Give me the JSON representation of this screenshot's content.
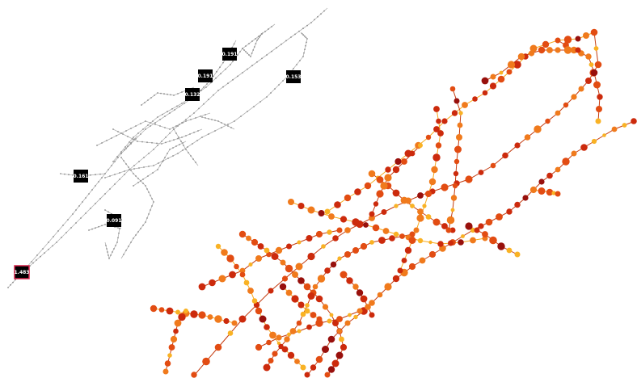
{
  "colors": {
    "background": "#ffffff",
    "overview_edge": "#b3b3b3",
    "overview_node": "#8c8c8c",
    "badge_fill": "#000000",
    "badge_text": "#ffffff",
    "highlight_border": "#d6224a",
    "main_edge_light": "#f7a81c",
    "main_edge_dark": "#c43b10",
    "node_yellow": "#f9b224",
    "node_orange": "#f07a1c",
    "node_red_orange": "#e24c12",
    "node_red": "#cc2a0c",
    "node_dark_red": "#98100c"
  },
  "overview": {
    "name": "network-overview",
    "badges": [
      {
        "id": "b1",
        "label": "0.191"
      },
      {
        "id": "b2",
        "label": "0.191"
      },
      {
        "id": "b3",
        "label": "0.153"
      },
      {
        "id": "b4",
        "label": "0.132"
      },
      {
        "id": "b5",
        "label": "0.161"
      },
      {
        "id": "b6",
        "label": "0.091"
      },
      {
        "id": "b7",
        "label": "1.483",
        "highlighted": true
      }
    ]
  },
  "detail": {
    "name": "network-detail"
  }
}
